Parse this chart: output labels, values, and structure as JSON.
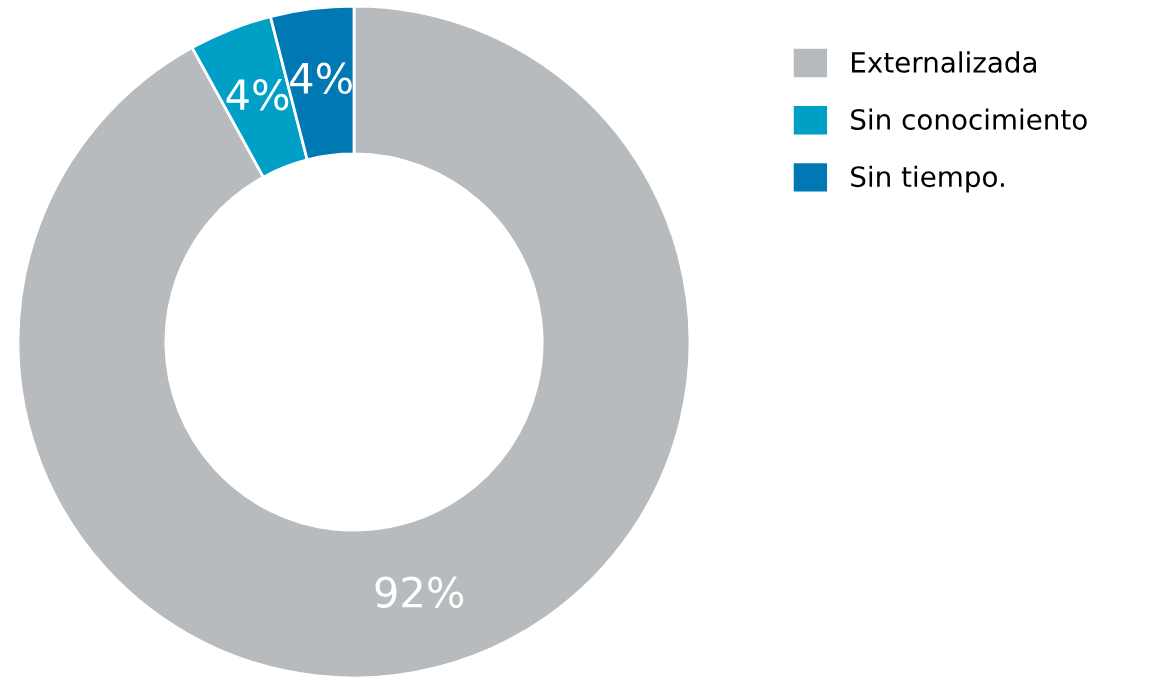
{
  "chart_data": {
    "type": "donut",
    "categories": [
      "Externalizada",
      "Sin conocimiento",
      "Sin tiempo."
    ],
    "values": [
      92,
      4,
      4
    ],
    "colors": [
      "#b7bbbe",
      "#00a0c6",
      "#0078b4"
    ],
    "value_labels": [
      "92%",
      "4%",
      "4%"
    ],
    "legend": "top right"
  }
}
